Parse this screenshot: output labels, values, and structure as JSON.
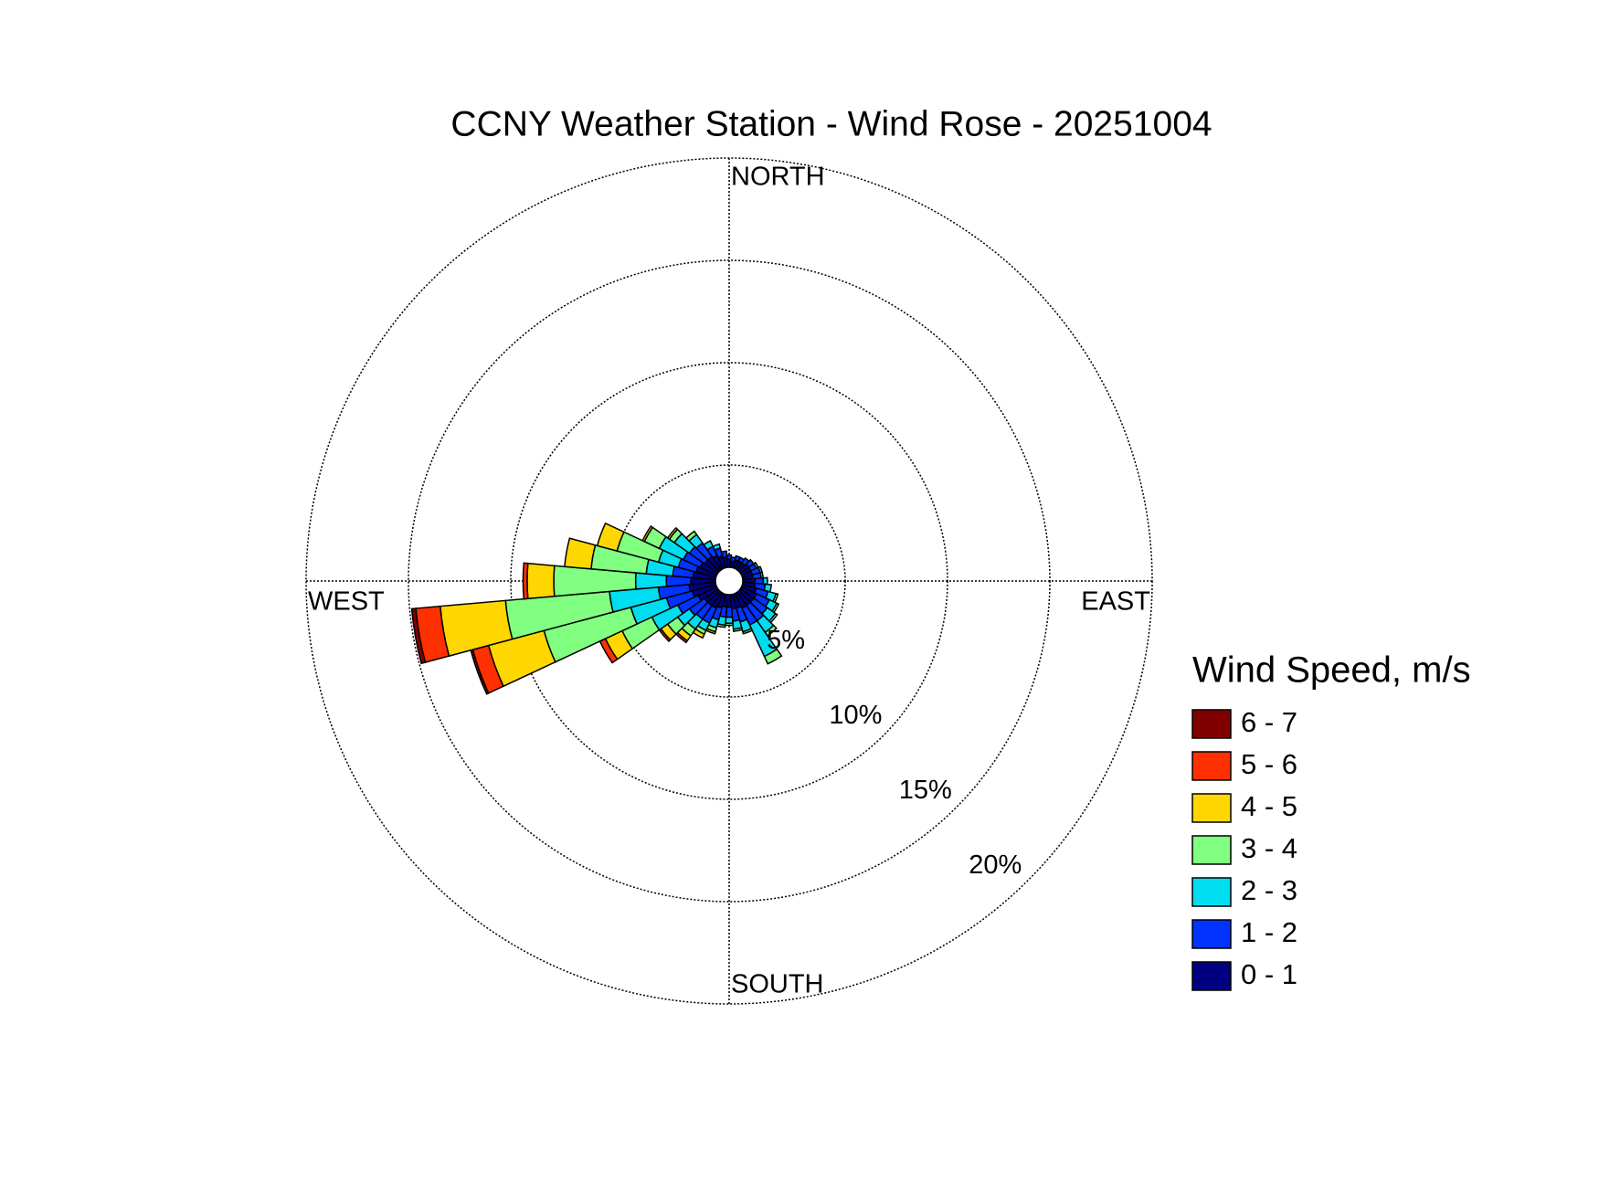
{
  "chart_data": {
    "type": "windrose",
    "title": "CCNY Weather Station - Wind Rose - 20251004",
    "compass_labels": {
      "north": "NORTH",
      "east": "EAST",
      "south": "SOUTH",
      "west": "WEST"
    },
    "categories": [
      null,
      null,
      null,
      null,
      null,
      null,
      null,
      null,
      null,
      null,
      null,
      null,
      null,
      null,
      null,
      null,
      null,
      null,
      null,
      null,
      null,
      null,
      null,
      null,
      null,
      null,
      null,
      null,
      null,
      null,
      null,
      null,
      null,
      null,
      null,
      null
    ],
    "rlim": [
      0,
      20
    ],
    "rticks": [
      {
        "value": 5,
        "label": "5%"
      },
      {
        "value": 10,
        "label": "10%"
      },
      {
        "value": 15,
        "label": "15%"
      },
      {
        "value": 20,
        "label": "20%"
      }
    ],
    "grid": true,
    "legend_title": "Wind Speed, m/s",
    "series": [
      {
        "name": "0 - 1",
        "color": "#000080",
        "values": [
          0.4,
          0.3,
          0.4,
          0.4,
          0.4,
          0.5,
          0.5,
          0.5,
          0.5,
          0.6,
          0.6,
          0.7,
          0.8,
          0.8,
          0.8,
          0.8,
          0.7,
          0.7,
          0.6,
          0.6,
          0.7,
          0.8,
          0.8,
          0.8,
          1.0,
          1.2,
          1.3,
          1.2,
          1.1,
          1.0,
          0.9,
          0.8,
          0.8,
          0.7,
          0.6,
          0.5
        ]
      },
      {
        "name": "1 - 2",
        "color": "#0033ff",
        "values": [
          0.2,
          0.2,
          0.2,
          0.2,
          0.3,
          0.3,
          0.3,
          0.4,
          0.4,
          0.4,
          0.5,
          0.6,
          0.7,
          0.8,
          0.9,
          0.9,
          0.7,
          0.6,
          0.5,
          0.5,
          0.6,
          0.8,
          0.8,
          0.9,
          1.1,
          1.3,
          1.5,
          1.2,
          1.0,
          0.9,
          0.9,
          0.9,
          0.8,
          0.5,
          0.4,
          0.3
        ]
      },
      {
        "name": "2 - 3",
        "color": "#00ddf0",
        "values": [
          0,
          0,
          0,
          0,
          0,
          0,
          0.1,
          0.1,
          0.1,
          0.2,
          0.3,
          0.4,
          0.4,
          0.5,
          0.7,
          1.7,
          0.5,
          0.4,
          0.3,
          0.4,
          0.4,
          0.4,
          0.6,
          0.7,
          1.4,
          1.8,
          2.4,
          1.5,
          1.3,
          1.0,
          1.3,
          0.9,
          0.5,
          0.3,
          0.2,
          0
        ]
      },
      {
        "name": "3 - 4",
        "color": "#80ff80",
        "values": [
          0,
          0,
          0,
          0,
          0,
          0,
          0,
          0,
          0,
          0,
          0,
          0.1,
          0.1,
          0.1,
          0.2,
          0.4,
          0.1,
          0.1,
          0.1,
          0.1,
          0.2,
          0.2,
          0.4,
          0.6,
          1.6,
          4.4,
          5.1,
          4.0,
          2.7,
          2.1,
          0.8,
          0.3,
          0.2,
          0,
          0,
          0
        ]
      },
      {
        "name": "4 - 5",
        "color": "#ffd700",
        "values": [
          0,
          0,
          0,
          0,
          0,
          0,
          0,
          0,
          0,
          0,
          0,
          0,
          0,
          0,
          0,
          0,
          0,
          0,
          0,
          0,
          0.1,
          0.2,
          0.3,
          0.4,
          0.9,
          2.8,
          3.2,
          1.3,
          1.3,
          1.0,
          0.1,
          0.1,
          0,
          0,
          0,
          0
        ]
      },
      {
        "name": "5 - 6",
        "color": "#ff3000",
        "values": [
          0,
          0,
          0,
          0,
          0,
          0,
          0,
          0,
          0,
          0,
          0,
          0,
          0,
          0,
          0,
          0,
          0,
          0,
          0,
          0,
          0,
          0,
          0.1,
          0.1,
          0.3,
          0.8,
          1.2,
          0.2,
          0,
          0,
          0,
          0,
          0,
          0,
          0,
          0
        ]
      },
      {
        "name": "6 - 7",
        "color": "#800000",
        "values": [
          0,
          0,
          0,
          0,
          0,
          0,
          0,
          0,
          0,
          0,
          0,
          0,
          0,
          0,
          0,
          0,
          0,
          0,
          0,
          0,
          0,
          0,
          0,
          0,
          0,
          0.1,
          0.2,
          0,
          0,
          0,
          0,
          0,
          0,
          0,
          0,
          0
        ]
      }
    ]
  }
}
